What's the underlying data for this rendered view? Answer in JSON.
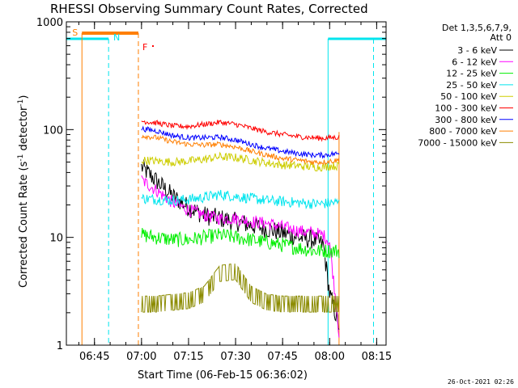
{
  "chart_data": {
    "type": "line",
    "title": "RHESSI Observing Summary Count Rates, Corrected",
    "xlabel": "Start Time (06-Feb-15 06:36:02)",
    "ylabel_main": "Corrected Count Rate (s",
    "ylabel_sup1": "-1",
    "ylabel_mid": " detector",
    "ylabel_sup2": "-1",
    "ylabel_end": ")",
    "yscale": "log",
    "ylim": [
      1,
      1000
    ],
    "xlim": [
      "06:36:02",
      "08:18:00"
    ],
    "x_ticks": [
      "06:45",
      "07:00",
      "07:15",
      "07:30",
      "07:45",
      "08:00",
      "08:15"
    ],
    "y_ticks": [
      "1",
      "10",
      "100",
      "1000"
    ],
    "legend_title": [
      "Det 1,3,5,6,7,9,",
      "Att 0"
    ],
    "legend_position": "right",
    "timestamp": "26-Oct-2021 02:26",
    "flags": [
      {
        "label": "S",
        "color": "#ff7f00"
      },
      {
        "label": "N",
        "color": "#00e5ee"
      },
      {
        "label": "F",
        "color": "#ff0000"
      }
    ],
    "series": [
      {
        "name": "3 - 6 keV",
        "color": "#000000",
        "x": [
          "07:00",
          "07:05",
          "07:10",
          "07:15",
          "07:20",
          "07:25",
          "07:30",
          "07:35",
          "07:40",
          "07:45",
          "07:50",
          "07:55",
          "07:58",
          "08:00",
          "08:03"
        ],
        "y": [
          45,
          33,
          24,
          19,
          16,
          15,
          14,
          13,
          12,
          11,
          10,
          9.5,
          8.5,
          3,
          1.5
        ]
      },
      {
        "name": "6 - 12 keV",
        "color": "#ff00ff",
        "x": [
          "07:00",
          "07:05",
          "07:10",
          "07:15",
          "07:20",
          "07:25",
          "07:30",
          "07:35",
          "07:40",
          "07:45",
          "07:50",
          "07:55",
          "07:58",
          "08:00",
          "08:03"
        ],
        "y": [
          34,
          27,
          21,
          18,
          16,
          15,
          15,
          14,
          13.5,
          12.5,
          11.5,
          11,
          10.5,
          9,
          1.3
        ]
      },
      {
        "name": "12 - 25 keV",
        "color": "#00ee00",
        "x": [
          "07:00",
          "07:05",
          "07:10",
          "07:15",
          "07:20",
          "07:25",
          "07:30",
          "07:35",
          "07:40",
          "07:45",
          "07:50",
          "07:55",
          "07:58",
          "08:00",
          "08:03"
        ],
        "y": [
          10.5,
          10,
          9.5,
          9.5,
          10,
          10.5,
          10,
          9.5,
          9,
          8.5,
          8,
          7.5,
          7.5,
          7.5,
          7.5
        ]
      },
      {
        "name": "25 - 50 keV",
        "color": "#00e5ee",
        "x": [
          "07:00",
          "07:05",
          "07:10",
          "07:15",
          "07:20",
          "07:25",
          "07:30",
          "07:35",
          "07:40",
          "07:45",
          "07:50",
          "07:55",
          "07:58",
          "08:00",
          "08:03"
        ],
        "y": [
          23,
          22.5,
          22,
          22.5,
          23.5,
          25,
          24,
          23,
          22,
          21.5,
          21,
          20.5,
          20.5,
          21,
          21
        ]
      },
      {
        "name": "50 - 100 keV",
        "color": "#cdcd00",
        "x": [
          "07:00",
          "07:05",
          "07:10",
          "07:15",
          "07:20",
          "07:25",
          "07:30",
          "07:35",
          "07:40",
          "07:45",
          "07:50",
          "07:55",
          "07:58",
          "08:00",
          "08:03"
        ],
        "y": [
          52,
          51,
          50,
          51,
          53,
          56,
          55,
          52,
          49,
          47,
          46,
          45,
          45,
          46,
          46
        ]
      },
      {
        "name": "100 - 300 keV",
        "color": "#ff0000",
        "x": [
          "07:00",
          "07:05",
          "07:10",
          "07:15",
          "07:20",
          "07:25",
          "07:30",
          "07:35",
          "07:40",
          "07:45",
          "07:50",
          "07:55",
          "07:58",
          "08:00",
          "08:03"
        ],
        "y": [
          120,
          115,
          108,
          107,
          112,
          117,
          112,
          103,
          95,
          90,
          86,
          84,
          83,
          84,
          85
        ]
      },
      {
        "name": "300 - 800 keV",
        "color": "#0000ff",
        "x": [
          "07:00",
          "07:05",
          "07:10",
          "07:15",
          "07:20",
          "07:25",
          "07:30",
          "07:35",
          "07:40",
          "07:45",
          "07:50",
          "07:55",
          "07:58",
          "08:00",
          "08:03"
        ],
        "y": [
          102,
          97,
          88,
          84,
          84,
          85,
          80,
          73,
          67,
          63,
          60,
          58,
          58,
          59,
          60
        ]
      },
      {
        "name": "800 - 7000 keV",
        "color": "#ff7f00",
        "x": [
          "07:00",
          "07:05",
          "07:10",
          "07:15",
          "07:20",
          "07:25",
          "07:30",
          "07:35",
          "07:40",
          "07:45",
          "07:50",
          "07:55",
          "07:58",
          "08:00",
          "08:03"
        ],
        "y": [
          88,
          84,
          77,
          73,
          72,
          73,
          69,
          63,
          58,
          54,
          52,
          50,
          50,
          51,
          52
        ]
      },
      {
        "name": "7000 - 15000 keV",
        "color": "#8b8b00",
        "x": [
          "07:00",
          "07:05",
          "07:10",
          "07:15",
          "07:20",
          "07:25",
          "07:30",
          "07:35",
          "07:40",
          "07:45",
          "07:50",
          "07:55",
          "07:58",
          "08:00",
          "08:03"
        ],
        "y": [
          2.6,
          2.6,
          2.7,
          2.8,
          3.2,
          5.0,
          5.2,
          3.2,
          2.7,
          2.6,
          2.6,
          2.6,
          2.6,
          2.6,
          2.6
        ]
      }
    ]
  }
}
